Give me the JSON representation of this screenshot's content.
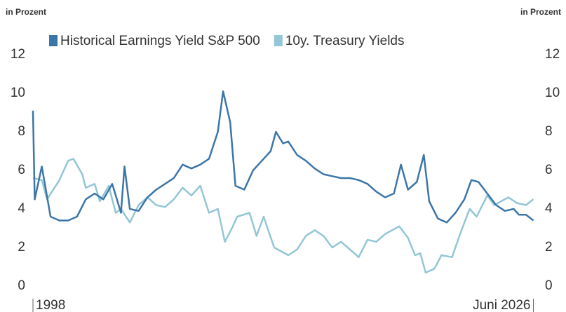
{
  "chart_data": {
    "type": "line",
    "y_label_left": "in Prozent",
    "y_label_right": "in Prozent",
    "xlim": [
      1998,
      2026.6
    ],
    "xticks": [
      {
        "value": 1998,
        "label": "1998"
      },
      {
        "value": 2026.42,
        "label": "Juni 2026"
      }
    ],
    "ylim": [
      0,
      12
    ],
    "yticks": [
      0,
      2,
      4,
      6,
      8,
      10,
      12
    ],
    "y2lim": [
      0,
      12
    ],
    "y2ticks": [
      0,
      2,
      4,
      6,
      8,
      10,
      12
    ],
    "grid": false,
    "legend": "top",
    "series": [
      {
        "name": "Historical Earnings Yield S&P 500",
        "color": "#3c76a8",
        "x": [
          1998,
          1998.1,
          1998.5,
          1999,
          1999.5,
          2000,
          2000.5,
          2001,
          2001.5,
          2002,
          2002.5,
          2003,
          2003.2,
          2003.5,
          2004,
          2004.5,
          2005,
          2005.5,
          2006,
          2006.5,
          2007,
          2007.5,
          2008,
          2008.5,
          2008.8,
          2009.2,
          2009.5,
          2010,
          2010.5,
          2011,
          2011.5,
          2011.8,
          2012.2,
          2012.5,
          2013,
          2013.5,
          2014,
          2014.5,
          2015,
          2015.5,
          2016,
          2016.5,
          2017,
          2017.5,
          2018,
          2018.5,
          2018.9,
          2019.3,
          2019.8,
          2020.2,
          2020.5,
          2021,
          2021.5,
          2022,
          2022.5,
          2022.9,
          2023.3,
          2023.8,
          2024.3,
          2024.8,
          2025.3,
          2025.6,
          2026,
          2026.42
        ],
        "values": [
          9.1,
          4.5,
          6.2,
          3.6,
          3.4,
          3.4,
          3.6,
          4.5,
          4.8,
          4.5,
          5.3,
          3.8,
          6.2,
          4.0,
          3.9,
          4.6,
          5.0,
          5.3,
          5.6,
          6.3,
          6.1,
          6.3,
          6.6,
          8.0,
          10.1,
          8.5,
          5.2,
          5.0,
          6.0,
          6.5,
          7.0,
          8.0,
          7.4,
          7.5,
          6.8,
          6.5,
          6.1,
          5.8,
          5.7,
          5.6,
          5.6,
          5.5,
          5.3,
          4.9,
          4.6,
          4.8,
          6.3,
          5.0,
          5.4,
          6.8,
          4.4,
          3.5,
          3.3,
          3.8,
          4.5,
          5.5,
          5.4,
          4.8,
          4.2,
          3.9,
          4.0,
          3.7,
          3.7,
          3.4
        ]
      },
      {
        "name": "10y. Treasury Yields",
        "color": "#93c6d6",
        "x": [
          1998,
          1998.5,
          1998.8,
          1999.5,
          2000,
          2000.3,
          2000.8,
          2001,
          2001.5,
          2001.8,
          2002.3,
          2002.7,
          2003,
          2003.5,
          2004,
          2004.5,
          2005,
          2005.5,
          2006,
          2006.5,
          2007,
          2007.5,
          2008,
          2008.5,
          2008.9,
          2009.3,
          2009.6,
          2010.3,
          2010.7,
          2011.1,
          2011.7,
          2012.5,
          2013,
          2013.5,
          2014,
          2014.5,
          2015,
          2015.5,
          2016,
          2016.5,
          2017,
          2017.5,
          2018,
          2018.8,
          2019.3,
          2019.7,
          2020,
          2020.3,
          2020.8,
          2021.2,
          2021.8,
          2022.3,
          2022.8,
          2023.2,
          2023.8,
          2024.2,
          2024.6,
          2025,
          2025.5,
          2026,
          2026.42
        ],
        "values": [
          5.6,
          5.5,
          4.5,
          5.5,
          6.5,
          6.6,
          5.8,
          5.1,
          5.3,
          4.4,
          5.2,
          3.8,
          4.0,
          3.3,
          4.2,
          4.6,
          4.2,
          4.1,
          4.5,
          5.1,
          4.7,
          5.2,
          3.8,
          4.0,
          2.3,
          3.0,
          3.6,
          3.8,
          2.6,
          3.6,
          2.0,
          1.6,
          1.9,
          2.6,
          2.9,
          2.6,
          2.0,
          2.3,
          1.9,
          1.5,
          2.4,
          2.3,
          2.7,
          3.1,
          2.5,
          1.6,
          1.7,
          0.7,
          0.9,
          1.6,
          1.5,
          2.8,
          4.0,
          3.6,
          4.7,
          4.2,
          4.4,
          4.6,
          4.3,
          4.2,
          4.5
        ]
      }
    ]
  }
}
